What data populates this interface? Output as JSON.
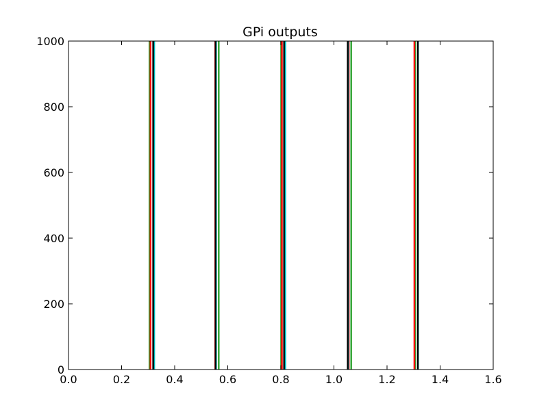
{
  "chart_data": {
    "type": "line",
    "title": "GPi outputs",
    "xlabel": "",
    "ylabel": "",
    "xlim": [
      0.0,
      1.6
    ],
    "ylim": [
      0,
      1000
    ],
    "x_ticks": [
      "0.0",
      "0.2",
      "0.4",
      "0.6",
      "0.8",
      "1.0",
      "1.2",
      "1.4",
      "1.6"
    ],
    "y_ticks": [
      "0",
      "200",
      "400",
      "600",
      "800",
      "1000"
    ],
    "grid": false,
    "legend": "none",
    "x_end": 1.5,
    "colors": [
      "#2ca02c",
      "#ff0000",
      "#00bfbf",
      "#000000"
    ],
    "series": [
      {
        "color": "#2ca02c",
        "spikes": [
          0.305,
          0.566,
          0.801,
          1.065,
          1.306
        ],
        "values_between_spikes": 0,
        "spike_value": 1000
      },
      {
        "color": "#ff0000",
        "spikes": [
          0.309,
          0.553,
          0.804,
          1.056,
          1.303
        ],
        "values_between_spikes": 0,
        "spike_value": 1000
      },
      {
        "color": "#00bfbf",
        "spikes": [
          0.323,
          0.556,
          0.817,
          1.054,
          1.317
        ],
        "values_between_spikes": 0,
        "spike_value": 1000
      },
      {
        "color": "#000000",
        "spikes": [
          0.319,
          0.554,
          0.812,
          1.052,
          1.316
        ],
        "values_between_spikes": 0,
        "spike_value": 1000
      }
    ]
  }
}
